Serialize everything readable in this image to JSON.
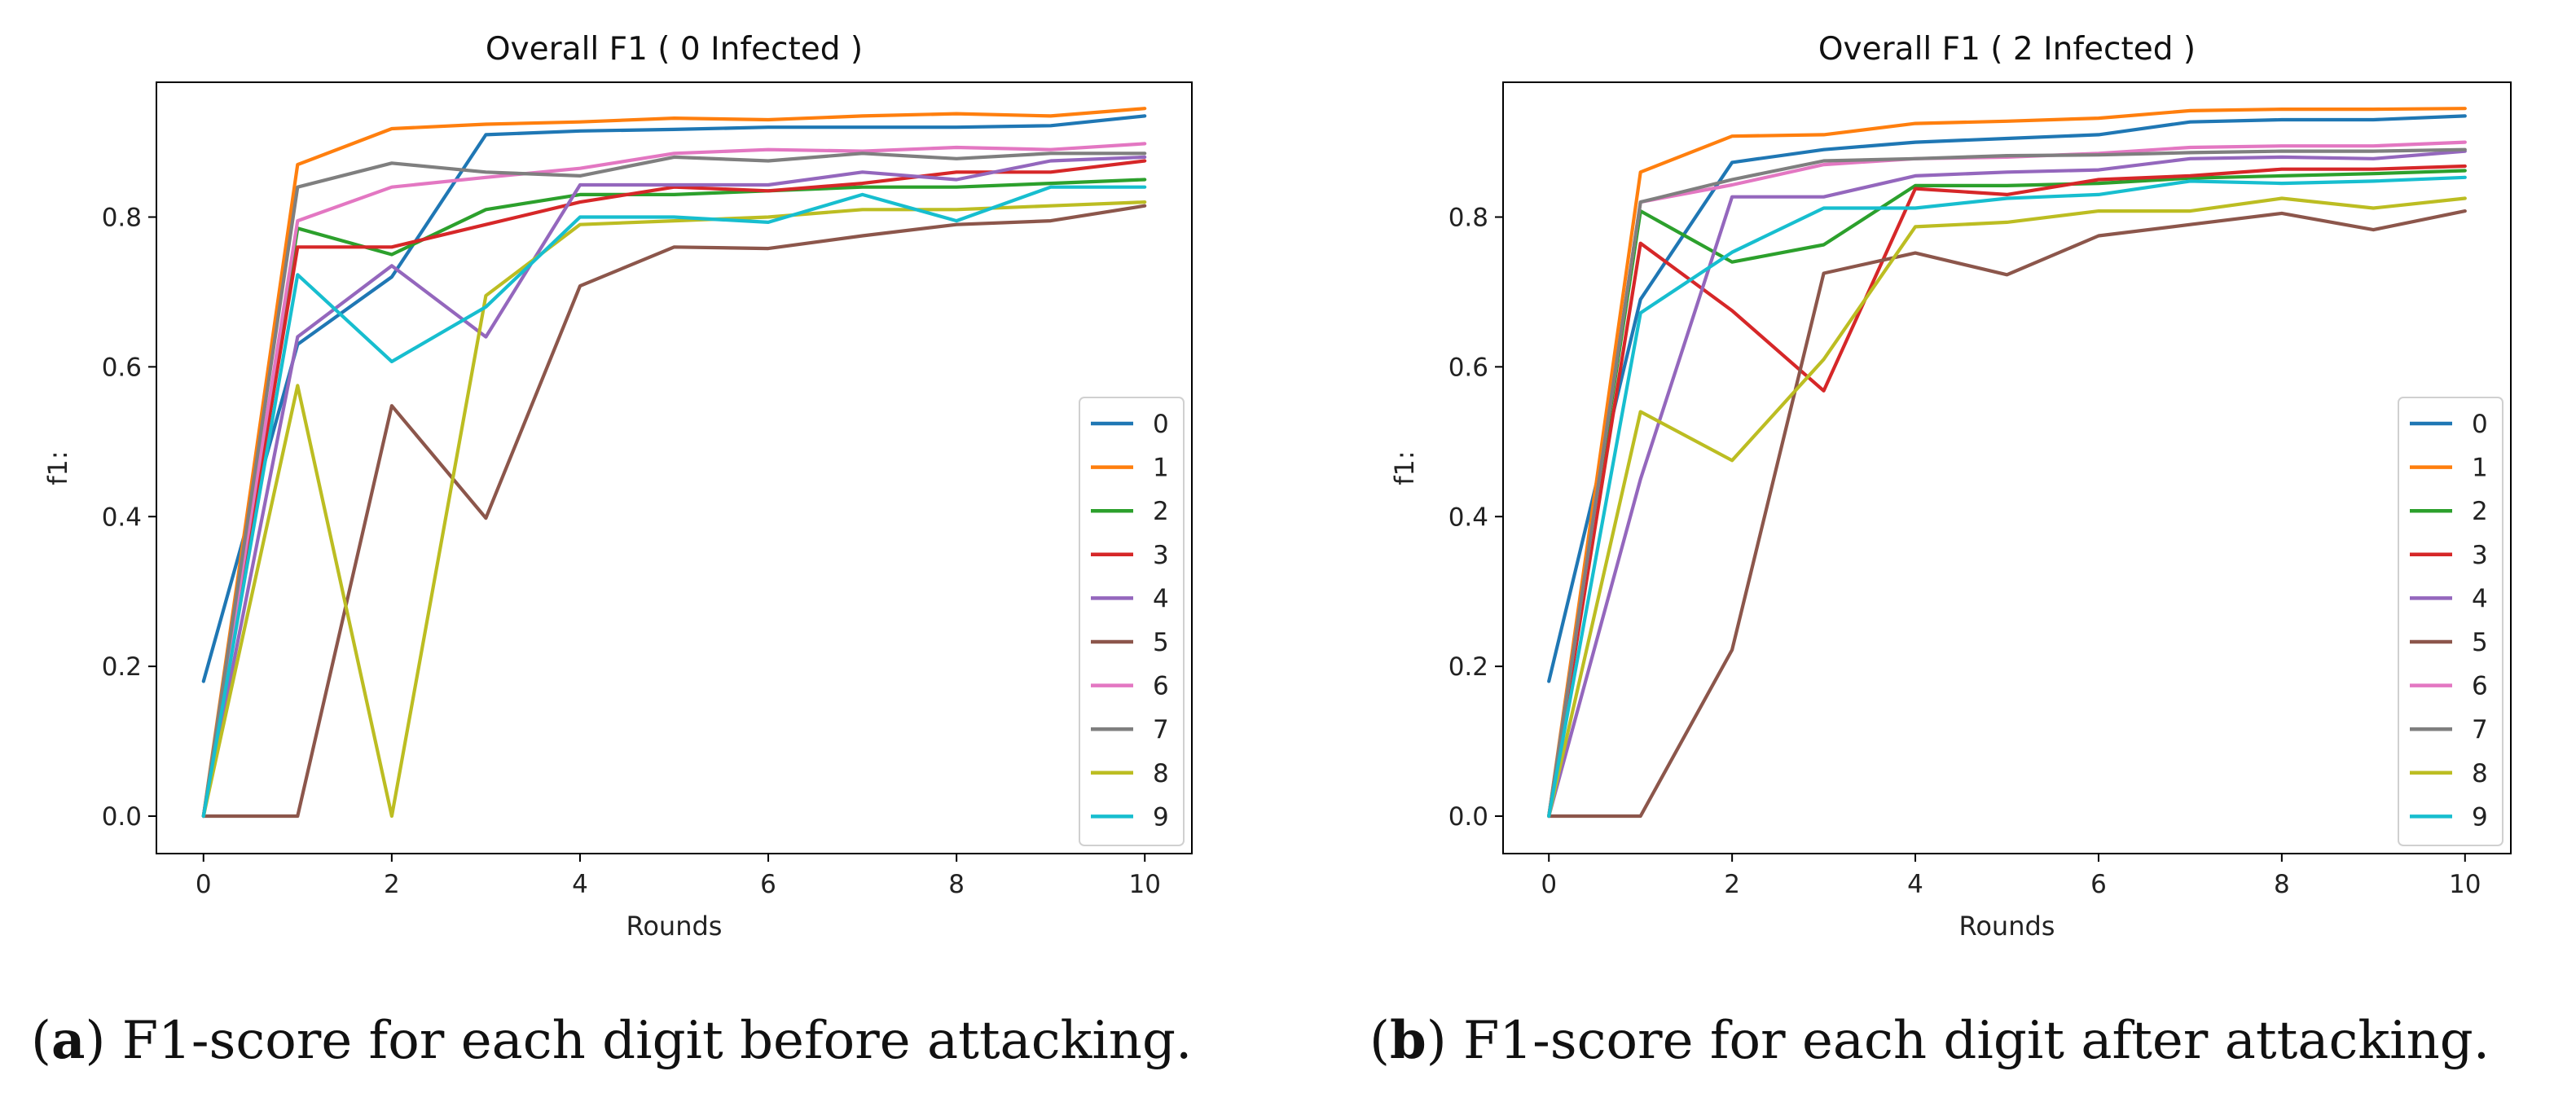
{
  "chart_data": [
    {
      "type": "line",
      "title": "Overall F1 ( 0 Infected )",
      "xlabel": "Rounds",
      "ylabel": "f1:",
      "xlim": [
        -0.5,
        10.5
      ],
      "ylim": [
        -0.05,
        0.98
      ],
      "xticks": [
        0,
        2,
        4,
        6,
        8,
        10
      ],
      "yticks": [
        0.0,
        0.2,
        0.4,
        0.6,
        0.8
      ],
      "xtick_labels": [
        "0",
        "2",
        "4",
        "6",
        "8",
        "10"
      ],
      "ytick_labels": [
        "0.0",
        "0.2",
        "0.4",
        "0.6",
        "0.8"
      ],
      "legend": "lower-right",
      "x": [
        0,
        1,
        2,
        3,
        4,
        5,
        6,
        7,
        8,
        9,
        10
      ],
      "series": [
        {
          "name": "0",
          "color": "#1f77b4",
          "values": [
            0.18,
            0.63,
            0.72,
            0.91,
            0.915,
            0.917,
            0.92,
            0.92,
            0.92,
            0.922,
            0.935
          ]
        },
        {
          "name": "1",
          "color": "#ff7f0e",
          "values": [
            0.0,
            0.87,
            0.918,
            0.924,
            0.927,
            0.932,
            0.93,
            0.935,
            0.938,
            0.935,
            0.945
          ]
        },
        {
          "name": "2",
          "color": "#2ca02c",
          "values": [
            0.0,
            0.785,
            0.75,
            0.81,
            0.83,
            0.83,
            0.835,
            0.84,
            0.84,
            0.845,
            0.85
          ]
        },
        {
          "name": "3",
          "color": "#d62728",
          "values": [
            0.0,
            0.76,
            0.76,
            0.79,
            0.82,
            0.84,
            0.835,
            0.845,
            0.86,
            0.86,
            0.875
          ]
        },
        {
          "name": "4",
          "color": "#9467bd",
          "values": [
            0.0,
            0.64,
            0.735,
            0.64,
            0.843,
            0.843,
            0.843,
            0.86,
            0.85,
            0.875,
            0.88
          ]
        },
        {
          "name": "5",
          "color": "#8c564b",
          "values": [
            0.0,
            0.0,
            0.548,
            0.398,
            0.708,
            0.76,
            0.758,
            0.775,
            0.79,
            0.795,
            0.815
          ]
        },
        {
          "name": "6",
          "color": "#e377c2",
          "values": [
            0.0,
            0.795,
            0.84,
            0.853,
            0.865,
            0.885,
            0.89,
            0.888,
            0.893,
            0.89,
            0.898
          ]
        },
        {
          "name": "7",
          "color": "#7f7f7f",
          "values": [
            0.0,
            0.84,
            0.872,
            0.86,
            0.855,
            0.88,
            0.875,
            0.885,
            0.878,
            0.885,
            0.885
          ]
        },
        {
          "name": "8",
          "color": "#bcbd22",
          "values": [
            0.0,
            0.575,
            0.0,
            0.695,
            0.79,
            0.795,
            0.8,
            0.81,
            0.81,
            0.815,
            0.82
          ]
        },
        {
          "name": "9",
          "color": "#17becf",
          "values": [
            0.0,
            0.723,
            0.607,
            0.68,
            0.8,
            0.8,
            0.793,
            0.83,
            0.795,
            0.84,
            0.84
          ]
        }
      ]
    },
    {
      "type": "line",
      "title": "Overall F1 ( 2 Infected )",
      "xlabel": "Rounds",
      "ylabel": "f1:",
      "xlim": [
        -0.5,
        10.5
      ],
      "ylim": [
        -0.05,
        0.98
      ],
      "xticks": [
        0,
        2,
        4,
        6,
        8,
        10
      ],
      "yticks": [
        0.0,
        0.2,
        0.4,
        0.6,
        0.8
      ],
      "xtick_labels": [
        "0",
        "2",
        "4",
        "6",
        "8",
        "10"
      ],
      "ytick_labels": [
        "0.0",
        "0.2",
        "0.4",
        "0.6",
        "0.8"
      ],
      "legend": "lower-right",
      "x": [
        0,
        1,
        2,
        3,
        4,
        5,
        6,
        7,
        8,
        9,
        10
      ],
      "series": [
        {
          "name": "0",
          "color": "#1f77b4",
          "values": [
            0.18,
            0.69,
            0.873,
            0.89,
            0.9,
            0.905,
            0.91,
            0.927,
            0.93,
            0.93,
            0.935
          ]
        },
        {
          "name": "1",
          "color": "#ff7f0e",
          "values": [
            0.0,
            0.86,
            0.908,
            0.91,
            0.925,
            0.928,
            0.932,
            0.942,
            0.944,
            0.944,
            0.945
          ]
        },
        {
          "name": "2",
          "color": "#2ca02c",
          "values": [
            0.0,
            0.808,
            0.74,
            0.763,
            0.842,
            0.842,
            0.845,
            0.852,
            0.855,
            0.858,
            0.862
          ]
        },
        {
          "name": "3",
          "color": "#d62728",
          "values": [
            0.0,
            0.765,
            0.675,
            0.568,
            0.838,
            0.83,
            0.85,
            0.855,
            0.864,
            0.864,
            0.868
          ]
        },
        {
          "name": "4",
          "color": "#9467bd",
          "values": [
            0.0,
            0.45,
            0.827,
            0.827,
            0.855,
            0.86,
            0.863,
            0.878,
            0.88,
            0.878,
            0.888
          ]
        },
        {
          "name": "5",
          "color": "#8c564b",
          "values": [
            0.0,
            0.0,
            0.222,
            0.725,
            0.752,
            0.723,
            0.775,
            0.79,
            0.805,
            0.783,
            0.808
          ]
        },
        {
          "name": "6",
          "color": "#e377c2",
          "values": [
            0.0,
            0.82,
            0.843,
            0.87,
            0.878,
            0.88,
            0.885,
            0.893,
            0.895,
            0.895,
            0.9
          ]
        },
        {
          "name": "7",
          "color": "#7f7f7f",
          "values": [
            0.0,
            0.82,
            0.85,
            0.875,
            0.878,
            0.882,
            0.883,
            0.886,
            0.888,
            0.888,
            0.89
          ]
        },
        {
          "name": "8",
          "color": "#bcbd22",
          "values": [
            0.0,
            0.54,
            0.475,
            0.61,
            0.787,
            0.793,
            0.808,
            0.808,
            0.825,
            0.812,
            0.825
          ]
        },
        {
          "name": "9",
          "color": "#17becf",
          "values": [
            0.0,
            0.672,
            0.753,
            0.812,
            0.812,
            0.825,
            0.83,
            0.848,
            0.845,
            0.848,
            0.853
          ]
        }
      ]
    }
  ],
  "captions": [
    {
      "label": "a",
      "text": ") F1-score for each digit before attacking."
    },
    {
      "label": "b",
      "text": ") F1-score for each digit after attacking."
    }
  ]
}
